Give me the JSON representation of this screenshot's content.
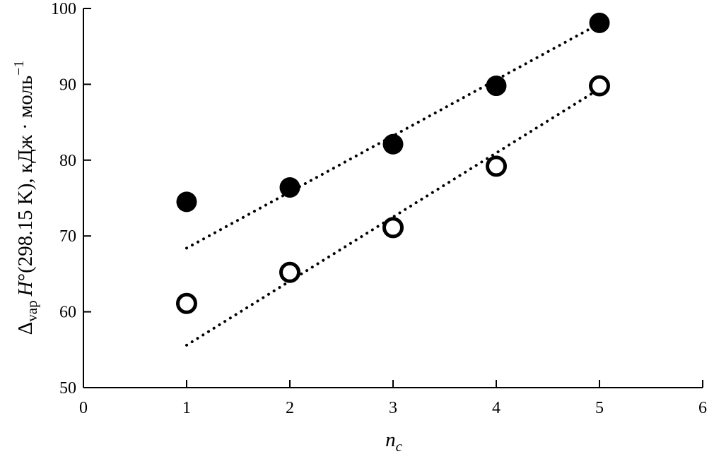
{
  "chart_data": {
    "type": "scatter",
    "title": "",
    "xlabel": "n",
    "xlabel_sub": "c",
    "ylabel_delta": "Δ",
    "ylabel_sub": "vap",
    "ylabel_H": "H",
    "ylabel_main": "°(298.15 K), кДж · моль",
    "ylabel_sup": "−1",
    "xlim": [
      0,
      6
    ],
    "ylim": [
      50,
      100
    ],
    "xticks": [
      "0",
      "1",
      "2",
      "3",
      "4",
      "5",
      "6"
    ],
    "yticks": [
      "50",
      "60",
      "70",
      "80",
      "90",
      "100"
    ],
    "grid": false,
    "legend": "none",
    "series": [
      {
        "marker": "filled-circle",
        "color": "#000000",
        "x": [
          1,
          2,
          3,
          4,
          5
        ],
        "y": [
          74.5,
          76.4,
          82.1,
          89.8,
          98.1
        ],
        "trendline": {
          "x": [
            1,
            5
          ],
          "y": [
            68.4,
            98.0
          ]
        }
      },
      {
        "marker": "open-circle",
        "color": "#000000",
        "x": [
          1,
          2,
          3,
          4,
          5
        ],
        "y": [
          61.1,
          65.2,
          71.1,
          79.2,
          89.8
        ],
        "trendline": {
          "x": [
            1,
            5
          ],
          "y": [
            55.6,
            89.4
          ]
        }
      }
    ]
  }
}
